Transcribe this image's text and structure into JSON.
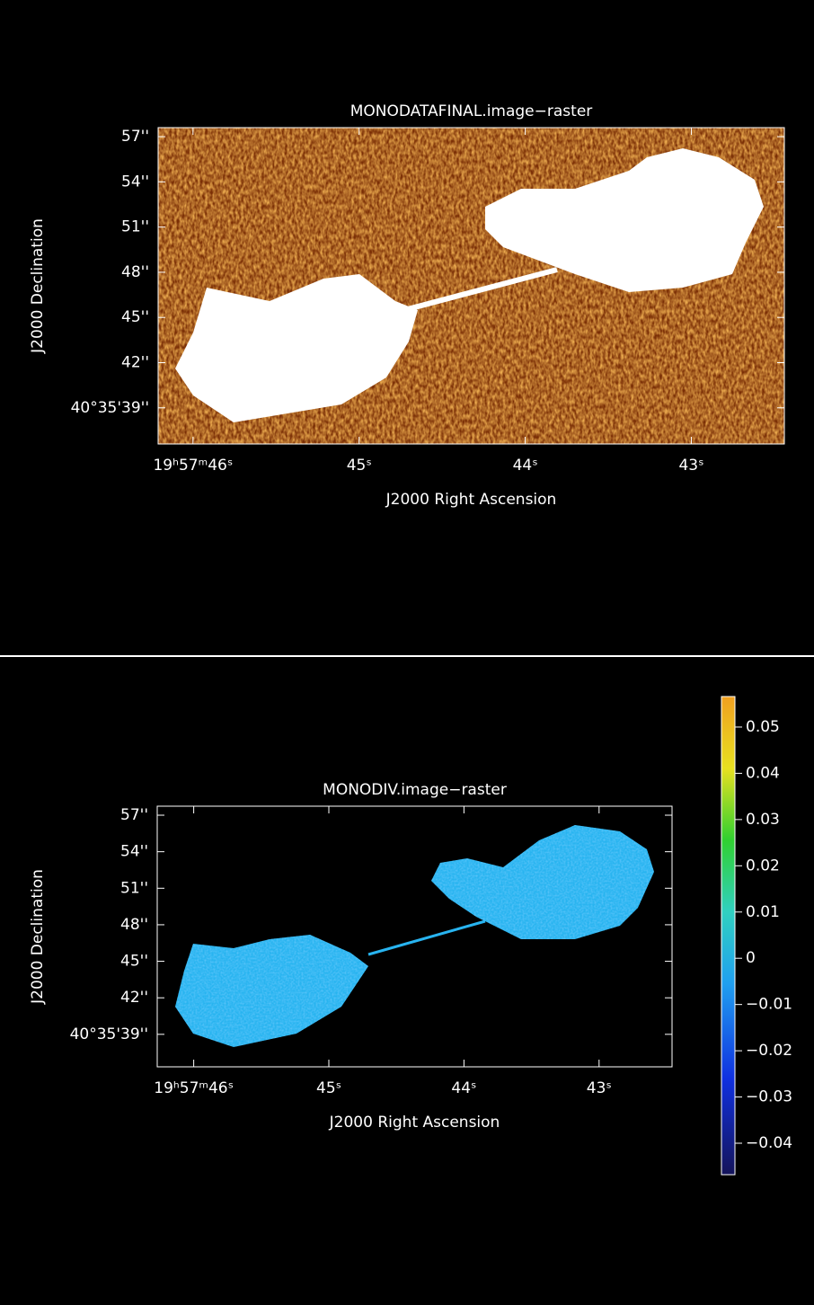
{
  "chart_data": [
    {
      "type": "image",
      "title": "MONODATAFINAL.image−raster",
      "xlabel": "J2000 Right Ascension",
      "ylabel": "J2000 Declination",
      "xlim": [
        46.21,
        42.44
      ],
      "ylim": [
        36.6,
        57.6
      ],
      "xticks": [
        {
          "value": 46,
          "label": "19ʰ57ᵐ46ˢ"
        },
        {
          "value": 45,
          "label": "45ˢ"
        },
        {
          "value": 44,
          "label": "44ˢ"
        },
        {
          "value": 43,
          "label": "43ˢ"
        }
      ],
      "yticks": [
        {
          "value": 57,
          "label": "57''"
        },
        {
          "value": 54,
          "label": "54''"
        },
        {
          "value": 51,
          "label": "51''"
        },
        {
          "value": 48,
          "label": "48''"
        },
        {
          "value": 45,
          "label": "45''"
        },
        {
          "value": 42,
          "label": "42''"
        },
        {
          "value": 39,
          "label": "40°35'39''"
        }
      ]
    },
    {
      "type": "image",
      "title": "MONODIV.image−raster",
      "xlabel": "J2000 Right Ascension",
      "ylabel": "J2000 Declination",
      "xlim": [
        46.27,
        42.46
      ],
      "ylim": [
        36.33,
        57.74
      ],
      "xticks": [
        {
          "value": 46,
          "label": "19ʰ57ᵐ46ˢ"
        },
        {
          "value": 45,
          "label": "45ˢ"
        },
        {
          "value": 44,
          "label": "44ˢ"
        },
        {
          "value": 43,
          "label": "43ˢ"
        }
      ],
      "yticks": [
        {
          "value": 57,
          "label": "57''"
        },
        {
          "value": 54,
          "label": "54''"
        },
        {
          "value": 51,
          "label": "51''"
        },
        {
          "value": 48,
          "label": "48''"
        },
        {
          "value": 45,
          "label": "45''"
        },
        {
          "value": 42,
          "label": "42''"
        },
        {
          "value": 39,
          "label": "40°35'39''"
        }
      ],
      "colorbar": {
        "lim": [
          -0.0468,
          0.0566
        ],
        "ticks": [
          0.05,
          0.04,
          0.03,
          0.02,
          0.01,
          0,
          {
            "value": -0.01,
            "label": "−0.01"
          },
          {
            "value": -0.02,
            "label": "−0.02"
          },
          {
            "value": -0.03,
            "label": "−0.03"
          },
          {
            "value": -0.04,
            "label": "−0.04"
          }
        ]
      }
    }
  ]
}
